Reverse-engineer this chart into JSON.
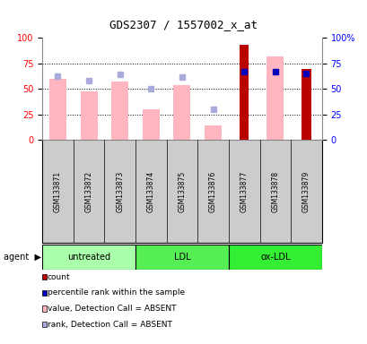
{
  "title": "GDS2307 / 1557002_x_at",
  "samples": [
    "GSM133871",
    "GSM133872",
    "GSM133873",
    "GSM133874",
    "GSM133875",
    "GSM133876",
    "GSM133877",
    "GSM133878",
    "GSM133879"
  ],
  "groups": [
    {
      "name": "untreated",
      "color": "#AAFFAA",
      "indices": [
        0,
        1,
        2
      ]
    },
    {
      "name": "LDL",
      "color": "#55EE55",
      "indices": [
        3,
        4,
        5
      ]
    },
    {
      "name": "ox-LDL",
      "color": "#33EE33",
      "indices": [
        6,
        7,
        8
      ]
    }
  ],
  "value_absent": [
    60,
    48,
    57,
    30,
    54,
    14,
    null,
    82,
    null
  ],
  "rank_absent": [
    63,
    58,
    64,
    50,
    62,
    30,
    null,
    null,
    null
  ],
  "count_values": [
    null,
    null,
    null,
    null,
    null,
    null,
    93,
    null,
    70
  ],
  "rank_present": [
    null,
    null,
    null,
    null,
    null,
    null,
    67,
    67,
    65
  ],
  "ylim": [
    0,
    100
  ],
  "yticks": [
    0,
    25,
    50,
    75,
    100
  ],
  "color_count": "#BB0000",
  "color_rank_present": "#0000BB",
  "color_value_absent": "#FFB6C1",
  "color_rank_absent": "#AAAADD",
  "bar_width": 0.55,
  "plot_bg": "#FFFFFF",
  "sample_bg": "#CCCCCC",
  "spine_color": "#888888"
}
